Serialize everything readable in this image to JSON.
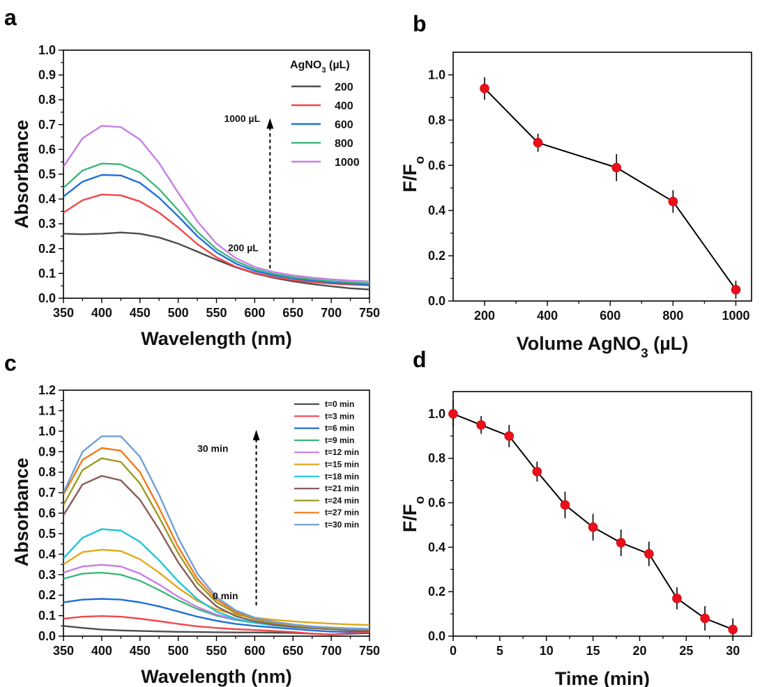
{
  "panel_labels": [
    "a",
    "b",
    "c",
    "d"
  ],
  "chart_data": [
    {
      "id": "a",
      "type": "line",
      "title": "",
      "xlabel": "Wavelength (nm)",
      "ylabel": "Absorbance",
      "xlim": [
        350,
        750
      ],
      "ylim": [
        0,
        1.0
      ],
      "xticks": [
        350,
        400,
        450,
        500,
        550,
        600,
        650,
        700,
        750
      ],
      "yticks": [
        0.0,
        0.1,
        0.2,
        0.3,
        0.4,
        0.5,
        0.6,
        0.7,
        0.8,
        0.9,
        1.0
      ],
      "legend_title": "AgNO3 (µL)",
      "legend_position": "top-right",
      "annotations": [
        {
          "text": "1000 µL",
          "x": 560,
          "y": 0.71
        },
        {
          "text": "200 µL",
          "x": 565,
          "y": 0.19
        }
      ],
      "arrow": {
        "x": 620,
        "y_from": 0.12,
        "y_to": 0.72
      },
      "series": [
        {
          "name": "200",
          "color": "#4d4d4d",
          "x": [
            350,
            375,
            400,
            425,
            450,
            475,
            500,
            525,
            550,
            575,
            600,
            625,
            650,
            675,
            700,
            725,
            750
          ],
          "y": [
            0.26,
            0.258,
            0.26,
            0.265,
            0.26,
            0.245,
            0.22,
            0.188,
            0.155,
            0.125,
            0.1,
            0.082,
            0.068,
            0.057,
            0.048,
            0.04,
            0.035
          ]
        },
        {
          "name": "400",
          "color": "#f0474c",
          "x": [
            350,
            375,
            400,
            425,
            450,
            475,
            500,
            525,
            550,
            575,
            600,
            625,
            650,
            675,
            700,
            725,
            750
          ],
          "y": [
            0.345,
            0.395,
            0.418,
            0.415,
            0.39,
            0.345,
            0.285,
            0.218,
            0.165,
            0.127,
            0.102,
            0.085,
            0.073,
            0.065,
            0.059,
            0.055,
            0.052
          ]
        },
        {
          "name": "600",
          "color": "#1f6fdc",
          "x": [
            350,
            375,
            400,
            425,
            450,
            475,
            500,
            525,
            550,
            575,
            600,
            625,
            650,
            675,
            700,
            725,
            750
          ],
          "y": [
            0.41,
            0.47,
            0.497,
            0.495,
            0.465,
            0.405,
            0.33,
            0.25,
            0.185,
            0.14,
            0.11,
            0.092,
            0.08,
            0.071,
            0.064,
            0.059,
            0.055
          ]
        },
        {
          "name": "800",
          "color": "#3db87a",
          "x": [
            350,
            375,
            400,
            425,
            450,
            475,
            500,
            525,
            550,
            575,
            600,
            625,
            650,
            675,
            700,
            725,
            750
          ],
          "y": [
            0.445,
            0.515,
            0.543,
            0.54,
            0.507,
            0.44,
            0.355,
            0.268,
            0.198,
            0.15,
            0.118,
            0.098,
            0.085,
            0.076,
            0.069,
            0.064,
            0.06
          ]
        },
        {
          "name": "1000",
          "color": "#c77ee6",
          "x": [
            350,
            375,
            400,
            425,
            450,
            475,
            500,
            525,
            550,
            575,
            600,
            625,
            650,
            675,
            700,
            725,
            750
          ],
          "y": [
            0.53,
            0.645,
            0.695,
            0.69,
            0.64,
            0.545,
            0.425,
            0.31,
            0.22,
            0.162,
            0.126,
            0.105,
            0.092,
            0.083,
            0.076,
            0.071,
            0.068
          ]
        }
      ]
    },
    {
      "id": "b",
      "type": "line",
      "title": "",
      "xlabel": "Volume AgNO3 (µL)",
      "ylabel": "F/Fo",
      "xlim": [
        100,
        1050
      ],
      "ylim": [
        0,
        1.1
      ],
      "xticks": [
        200,
        400,
        600,
        800,
        1000
      ],
      "yticks": [
        0.0,
        0.2,
        0.4,
        0.6,
        0.8,
        1.0
      ],
      "series": [
        {
          "name": "",
          "color": "#000000",
          "marker_color": "#e8101a",
          "x": [
            200,
            370,
            620,
            800,
            1000
          ],
          "y": [
            0.94,
            0.7,
            0.59,
            0.44,
            0.05
          ],
          "yerr": [
            0.05,
            0.04,
            0.06,
            0.05,
            0.04
          ]
        }
      ]
    },
    {
      "id": "c",
      "type": "line",
      "title": "",
      "xlabel": "Wavelength (nm)",
      "ylabel": "Absorbance",
      "xlim": [
        350,
        750
      ],
      "ylim": [
        0,
        1.2
      ],
      "xticks": [
        350,
        400,
        450,
        500,
        550,
        600,
        650,
        700,
        750
      ],
      "yticks": [
        0.0,
        0.1,
        0.2,
        0.3,
        0.4,
        0.5,
        0.6,
        0.7,
        0.8,
        0.9,
        1.0,
        1.1,
        1.2
      ],
      "legend_position": "top-right",
      "annotations": [
        {
          "text": "30 min",
          "x": 525,
          "y": 0.9
        },
        {
          "text": "0 min",
          "x": 545,
          "y": 0.18
        }
      ],
      "arrow": {
        "x": 602,
        "y_from": 0.15,
        "y_to": 1.0
      },
      "series": [
        {
          "name": "t=0 min",
          "color": "#4d4d4d",
          "x": [
            350,
            375,
            400,
            425,
            450,
            475,
            500,
            525,
            550,
            575,
            600,
            625,
            650,
            675,
            700,
            725,
            750
          ],
          "y": [
            0.05,
            0.04,
            0.032,
            0.028,
            0.025,
            0.023,
            0.021,
            0.02,
            0.019,
            0.018,
            0.018,
            0.017,
            0.016,
            0.012,
            0.008,
            0.012,
            0.015
          ]
        },
        {
          "name": "t=3 min",
          "color": "#f0474c",
          "x": [
            350,
            375,
            400,
            425,
            450,
            475,
            500,
            525,
            550,
            575,
            600,
            625,
            650,
            675,
            700,
            725,
            750
          ],
          "y": [
            0.085,
            0.095,
            0.098,
            0.095,
            0.085,
            0.073,
            0.06,
            0.048,
            0.04,
            0.034,
            0.03,
            0.025,
            0.02,
            0.012,
            0.008,
            0.015,
            0.02
          ]
        },
        {
          "name": "t=6 min",
          "color": "#1f6fdc",
          "x": [
            350,
            375,
            400,
            425,
            450,
            475,
            500,
            525,
            550,
            575,
            600,
            625,
            650,
            675,
            700,
            725,
            750
          ],
          "y": [
            0.165,
            0.178,
            0.182,
            0.178,
            0.165,
            0.145,
            0.12,
            0.095,
            0.075,
            0.06,
            0.05,
            0.042,
            0.035,
            0.028,
            0.022,
            0.022,
            0.025
          ]
        },
        {
          "name": "t=9 min",
          "color": "#3db87a",
          "x": [
            350,
            375,
            400,
            425,
            450,
            475,
            500,
            525,
            550,
            575,
            600,
            625,
            650,
            675,
            700,
            725,
            750
          ],
          "y": [
            0.28,
            0.305,
            0.31,
            0.3,
            0.27,
            0.225,
            0.175,
            0.132,
            0.1,
            0.079,
            0.065,
            0.055,
            0.048,
            0.042,
            0.038,
            0.035,
            0.033
          ]
        },
        {
          "name": "t=12 min",
          "color": "#c77ee6",
          "x": [
            350,
            375,
            400,
            425,
            450,
            475,
            500,
            525,
            550,
            575,
            600,
            625,
            650,
            675,
            700,
            725,
            750
          ],
          "y": [
            0.31,
            0.34,
            0.348,
            0.34,
            0.305,
            0.252,
            0.192,
            0.142,
            0.105,
            0.082,
            0.068,
            0.058,
            0.05,
            0.044,
            0.04,
            0.037,
            0.035
          ]
        },
        {
          "name": "t=15 min",
          "color": "#e0a81c",
          "x": [
            350,
            375,
            400,
            425,
            450,
            475,
            500,
            525,
            550,
            575,
            600,
            625,
            650,
            675,
            700,
            725,
            750
          ],
          "y": [
            0.35,
            0.41,
            0.422,
            0.415,
            0.375,
            0.31,
            0.235,
            0.172,
            0.13,
            0.105,
            0.09,
            0.08,
            0.072,
            0.066,
            0.061,
            0.057,
            0.054
          ]
        },
        {
          "name": "t=18 min",
          "color": "#1ec7d6",
          "x": [
            350,
            375,
            400,
            425,
            450,
            475,
            500,
            525,
            550,
            575,
            600,
            625,
            650,
            675,
            700,
            725,
            750
          ],
          "y": [
            0.38,
            0.48,
            0.522,
            0.515,
            0.46,
            0.37,
            0.268,
            0.18,
            0.12,
            0.085,
            0.065,
            0.052,
            0.044,
            0.038,
            0.034,
            0.031,
            0.029
          ]
        },
        {
          "name": "t=21 min",
          "color": "#8b5a5a",
          "x": [
            350,
            375,
            400,
            425,
            450,
            475,
            500,
            525,
            550,
            575,
            600,
            625,
            650,
            675,
            700,
            725,
            750
          ],
          "y": [
            0.59,
            0.74,
            0.782,
            0.76,
            0.665,
            0.52,
            0.36,
            0.23,
            0.145,
            0.098,
            0.072,
            0.056,
            0.046,
            0.039,
            0.034,
            0.03,
            0.028
          ]
        },
        {
          "name": "t=24 min",
          "color": "#9a9a1e",
          "x": [
            350,
            375,
            400,
            425,
            450,
            475,
            500,
            525,
            550,
            575,
            600,
            625,
            650,
            675,
            700,
            725,
            750
          ],
          "y": [
            0.64,
            0.81,
            0.868,
            0.85,
            0.745,
            0.58,
            0.405,
            0.26,
            0.165,
            0.112,
            0.082,
            0.064,
            0.052,
            0.044,
            0.039,
            0.035,
            0.032
          ]
        },
        {
          "name": "t=27 min",
          "color": "#f07a1a",
          "x": [
            350,
            375,
            400,
            425,
            450,
            475,
            500,
            525,
            550,
            575,
            600,
            625,
            650,
            675,
            700,
            725,
            750
          ],
          "y": [
            0.69,
            0.86,
            0.918,
            0.905,
            0.8,
            0.625,
            0.435,
            0.28,
            0.178,
            0.12,
            0.088,
            0.068,
            0.055,
            0.047,
            0.041,
            0.037,
            0.034
          ]
        },
        {
          "name": "t=30 min",
          "color": "#6fa1d6",
          "x": [
            350,
            375,
            400,
            425,
            450,
            475,
            500,
            525,
            550,
            575,
            600,
            625,
            650,
            675,
            700,
            725,
            750
          ],
          "y": [
            0.7,
            0.9,
            0.975,
            0.975,
            0.875,
            0.69,
            0.48,
            0.305,
            0.19,
            0.126,
            0.09,
            0.07,
            0.057,
            0.048,
            0.042,
            0.038,
            0.035
          ]
        }
      ]
    },
    {
      "id": "d",
      "type": "line",
      "title": "",
      "xlabel": "Time (min)",
      "ylabel": "F/Fo",
      "xlim": [
        0,
        32
      ],
      "ylim": [
        0,
        1.1
      ],
      "xticks": [
        0,
        5,
        10,
        15,
        20,
        25,
        30
      ],
      "yticks": [
        0.0,
        0.2,
        0.4,
        0.6,
        0.8,
        1.0
      ],
      "series": [
        {
          "name": "",
          "color": "#000000",
          "marker_color": "#e8101a",
          "x": [
            0,
            3,
            6,
            9,
            12,
            15,
            18,
            21,
            24,
            27,
            30
          ],
          "y": [
            1.0,
            0.95,
            0.9,
            0.74,
            0.59,
            0.49,
            0.42,
            0.37,
            0.17,
            0.08,
            0.03
          ],
          "yerr": [
            0.06,
            0.04,
            0.05,
            0.045,
            0.06,
            0.06,
            0.06,
            0.055,
            0.05,
            0.055,
            0.05
          ]
        }
      ]
    }
  ]
}
